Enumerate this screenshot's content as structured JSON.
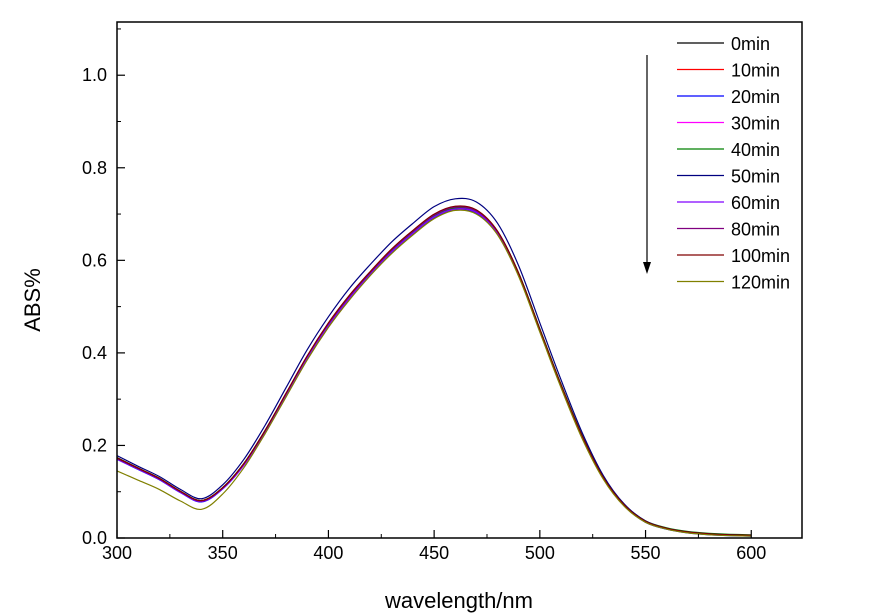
{
  "chart_data": {
    "type": "line",
    "title": "",
    "xlabel": "wavelength/nm",
    "ylabel": "ABS%",
    "xlim": [
      300,
      624
    ],
    "ylim": [
      0,
      1.115
    ],
    "xticks": [
      300,
      350,
      400,
      450,
      500,
      550,
      600
    ],
    "xtick_labels": [
      "300",
      "350",
      "400",
      "450",
      "500",
      "550",
      "600"
    ],
    "yticks": [
      0.0,
      0.2,
      0.4,
      0.6,
      0.8,
      1.0
    ],
    "ytick_labels": [
      "0.0",
      "0.2",
      "0.4",
      "0.6",
      "0.8",
      "1.0"
    ],
    "grid": false,
    "legend_position": "top-right",
    "annotation": "downward arrow indicating decreasing absorbance over time",
    "x": [
      300,
      310,
      320,
      330,
      340,
      350,
      360,
      370,
      380,
      390,
      400,
      410,
      420,
      430,
      440,
      450,
      460,
      470,
      480,
      490,
      500,
      510,
      520,
      530,
      540,
      550,
      560,
      570,
      580,
      590,
      600
    ],
    "series": [
      {
        "name": "0min",
        "color": "#000000",
        "values": [
          0.174,
          0.151,
          0.129,
          0.101,
          0.081,
          0.109,
          0.161,
          0.232,
          0.312,
          0.392,
          0.462,
          0.522,
          0.574,
          0.622,
          0.662,
          0.697,
          0.714,
          0.707,
          0.662,
          0.572,
          0.452,
          0.332,
          0.221,
          0.131,
          0.071,
          0.036,
          0.021,
          0.013,
          0.009,
          0.007,
          0.006
        ]
      },
      {
        "name": "10min",
        "color": "#ff0000",
        "values": [
          0.172,
          0.15,
          0.128,
          0.1,
          0.08,
          0.108,
          0.16,
          0.23,
          0.31,
          0.39,
          0.46,
          0.52,
          0.572,
          0.62,
          0.66,
          0.695,
          0.712,
          0.705,
          0.66,
          0.57,
          0.45,
          0.33,
          0.22,
          0.13,
          0.07,
          0.035,
          0.02,
          0.012,
          0.008,
          0.006,
          0.005
        ]
      },
      {
        "name": "20min",
        "color": "#0000ff",
        "values": [
          0.17,
          0.148,
          0.126,
          0.098,
          0.078,
          0.106,
          0.157,
          0.227,
          0.307,
          0.387,
          0.457,
          0.517,
          0.569,
          0.617,
          0.657,
          0.692,
          0.709,
          0.702,
          0.658,
          0.568,
          0.448,
          0.328,
          0.218,
          0.129,
          0.069,
          0.034,
          0.019,
          0.011,
          0.007,
          0.005,
          0.004
        ]
      },
      {
        "name": "30min",
        "color": "#ff00ff",
        "values": [
          0.171,
          0.149,
          0.127,
          0.099,
          0.079,
          0.107,
          0.158,
          0.229,
          0.309,
          0.389,
          0.459,
          0.519,
          0.571,
          0.619,
          0.659,
          0.694,
          0.711,
          0.704,
          0.659,
          0.569,
          0.449,
          0.329,
          0.219,
          0.129,
          0.069,
          0.035,
          0.02,
          0.012,
          0.008,
          0.006,
          0.005
        ]
      },
      {
        "name": "40min",
        "color": "#008000",
        "values": [
          0.173,
          0.151,
          0.129,
          0.101,
          0.081,
          0.109,
          0.161,
          0.231,
          0.311,
          0.391,
          0.461,
          0.521,
          0.573,
          0.621,
          0.661,
          0.696,
          0.713,
          0.706,
          0.662,
          0.572,
          0.452,
          0.332,
          0.222,
          0.132,
          0.072,
          0.037,
          0.022,
          0.014,
          0.01,
          0.008,
          0.007
        ]
      },
      {
        "name": "50min",
        "color": "#000080",
        "values": [
          0.178,
          0.155,
          0.133,
          0.105,
          0.085,
          0.115,
          0.17,
          0.243,
          0.325,
          0.407,
          0.478,
          0.54,
          0.592,
          0.64,
          0.68,
          0.716,
          0.733,
          0.726,
          0.68,
          0.588,
          0.465,
          0.342,
          0.228,
          0.135,
          0.073,
          0.037,
          0.021,
          0.013,
          0.009,
          0.007,
          0.006
        ]
      },
      {
        "name": "60min",
        "color": "#8000ff",
        "values": [
          0.171,
          0.149,
          0.127,
          0.099,
          0.079,
          0.107,
          0.159,
          0.229,
          0.309,
          0.389,
          0.459,
          0.519,
          0.571,
          0.619,
          0.659,
          0.694,
          0.711,
          0.704,
          0.659,
          0.569,
          0.449,
          0.329,
          0.219,
          0.129,
          0.069,
          0.035,
          0.02,
          0.012,
          0.008,
          0.006,
          0.005
        ]
      },
      {
        "name": "80min",
        "color": "#800080",
        "values": [
          0.172,
          0.15,
          0.128,
          0.1,
          0.08,
          0.108,
          0.16,
          0.231,
          0.312,
          0.393,
          0.463,
          0.523,
          0.575,
          0.623,
          0.663,
          0.698,
          0.715,
          0.707,
          0.661,
          0.57,
          0.45,
          0.33,
          0.22,
          0.13,
          0.07,
          0.035,
          0.02,
          0.012,
          0.008,
          0.006,
          0.005
        ]
      },
      {
        "name": "100min",
        "color": "#800000",
        "values": [
          0.173,
          0.151,
          0.129,
          0.101,
          0.081,
          0.109,
          0.161,
          0.232,
          0.313,
          0.394,
          0.465,
          0.525,
          0.577,
          0.625,
          0.665,
          0.7,
          0.717,
          0.709,
          0.663,
          0.572,
          0.451,
          0.331,
          0.221,
          0.131,
          0.071,
          0.036,
          0.021,
          0.013,
          0.009,
          0.007,
          0.006
        ]
      },
      {
        "name": "120min",
        "color": "#808000",
        "values": [
          0.145,
          0.125,
          0.105,
          0.08,
          0.062,
          0.095,
          0.152,
          0.225,
          0.305,
          0.385,
          0.455,
          0.515,
          0.568,
          0.615,
          0.655,
          0.69,
          0.708,
          0.7,
          0.655,
          0.565,
          0.445,
          0.325,
          0.215,
          0.127,
          0.068,
          0.034,
          0.019,
          0.011,
          0.007,
          0.005,
          0.004
        ]
      }
    ]
  }
}
